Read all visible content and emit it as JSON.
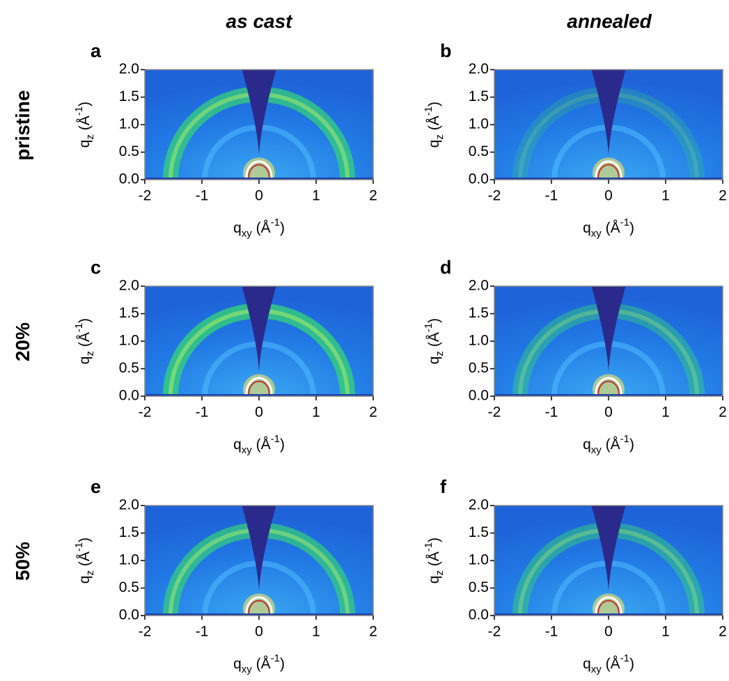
{
  "columns": [
    "as cast",
    "annealed"
  ],
  "rows": [
    "pristine",
    "20%",
    "50%"
  ],
  "chart_data": [
    {
      "type": "image",
      "panel": "a",
      "xlabel": [
        "q",
        "xy",
        " (Å",
        "-1",
        ")"
      ],
      "ylabel": [
        "q",
        "z",
        " (Å",
        "-1",
        ")"
      ],
      "xlim": [
        -2,
        2
      ],
      "ylim": [
        0,
        2
      ],
      "xticks": [
        -2,
        -1,
        0,
        1,
        2
      ],
      "yticks": [
        {
          "value": 0,
          "label": "0.0"
        },
        0.5,
        {
          "value": 1,
          "label": "1.0"
        },
        1.5,
        {
          "value": 2,
          "label": "2.0"
        }
      ]
    },
    {
      "type": "image",
      "panel": "b",
      "xlabel": [
        "q",
        "xy",
        " (Å",
        "-1",
        ")"
      ],
      "ylabel": [
        "q",
        "z",
        " (Å",
        "-1",
        ")"
      ],
      "xlim": [
        -2,
        2
      ],
      "ylim": [
        0,
        2
      ],
      "xticks": [
        -2,
        -1,
        0,
        1,
        2
      ],
      "yticks": [
        {
          "value": 0,
          "label": "0.0"
        },
        0.5,
        {
          "value": 1,
          "label": "1.0"
        },
        1.5,
        {
          "value": 2,
          "label": "2.0"
        }
      ]
    },
    {
      "type": "image",
      "panel": "c",
      "xlabel": [
        "q",
        "xy",
        " (Å",
        "-1",
        ")"
      ],
      "ylabel": [
        "q",
        "z",
        " (Å",
        "-1",
        ")"
      ],
      "xlim": [
        -2,
        2
      ],
      "ylim": [
        0,
        2
      ],
      "xticks": [
        -2,
        -1,
        0,
        1,
        2
      ],
      "yticks": [
        {
          "value": 0,
          "label": "0.0"
        },
        0.5,
        {
          "value": 1,
          "label": "1.0"
        },
        1.5,
        {
          "value": 2,
          "label": "2.0"
        }
      ]
    },
    {
      "type": "image",
      "panel": "d",
      "xlabel": [
        "q",
        "xy",
        " (Å",
        "-1",
        ")"
      ],
      "ylabel": [
        "q",
        "z",
        " (Å",
        "-1",
        ")"
      ],
      "xlim": [
        -2,
        2
      ],
      "ylim": [
        0,
        2
      ],
      "xticks": [
        -2,
        -1,
        0,
        1,
        2
      ],
      "yticks": [
        {
          "value": 0,
          "label": "0.0"
        },
        0.5,
        {
          "value": 1,
          "label": "1.0"
        },
        1.5,
        {
          "value": 2,
          "label": "2.0"
        }
      ]
    },
    {
      "type": "image",
      "panel": "e",
      "xlabel": [
        "q",
        "xy",
        " (Å",
        "-1",
        ")"
      ],
      "ylabel": [
        "q",
        "z",
        " (Å",
        "-1",
        ")"
      ],
      "xlim": [
        -2,
        2
      ],
      "ylim": [
        0,
        2
      ],
      "xticks": [
        -2,
        -1,
        0,
        1,
        2
      ],
      "yticks": [
        {
          "value": 0,
          "label": "0.0"
        },
        0.5,
        {
          "value": 1,
          "label": "1.0"
        },
        1.5,
        {
          "value": 2,
          "label": "2.0"
        }
      ]
    },
    {
      "type": "image",
      "panel": "f",
      "xlabel": [
        "q",
        "xy",
        " (Å",
        "-1",
        ")"
      ],
      "ylabel": [
        "q",
        "z",
        " (Å",
        "-1",
        ")"
      ],
      "xlim": [
        -2,
        2
      ],
      "ylim": [
        0,
        2
      ],
      "xticks": [
        -2,
        -1,
        0,
        1,
        2
      ],
      "yticks": [
        {
          "value": 0,
          "label": "0.0"
        },
        0.5,
        {
          "value": 1,
          "label": "1.0"
        },
        1.5,
        {
          "value": 2,
          "label": "2.0"
        }
      ]
    }
  ]
}
